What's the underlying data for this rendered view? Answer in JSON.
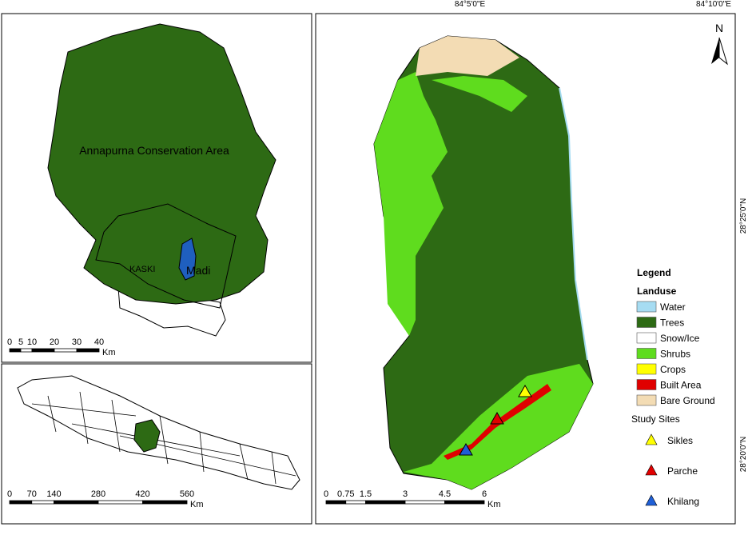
{
  "inset_top": {
    "labels": {
      "area": "Annapurna Conservation Area",
      "district": "KASKI",
      "watershed": "Madi"
    },
    "scale": {
      "ticks": [
        0,
        5,
        10,
        20,
        30,
        40
      ],
      "unit": "Km"
    }
  },
  "inset_bottom": {
    "scale": {
      "ticks": [
        0,
        70,
        140,
        280,
        420,
        560
      ],
      "unit": "Km"
    }
  },
  "main_map": {
    "graticule": {
      "x": [
        "84°5'0\"E",
        "84°10'0\"E"
      ],
      "y": [
        "28°25'0\"N",
        "28°20'0\"N"
      ]
    },
    "north": "N",
    "scale": {
      "ticks": [
        0,
        0.75,
        1.5,
        3,
        4.5,
        6
      ],
      "unit": "Km"
    }
  },
  "legend": {
    "title": "Legend",
    "landuse_title": "Landuse",
    "landuse": [
      {
        "label": "Water",
        "color": "#a6dcf2"
      },
      {
        "label": "Trees",
        "color": "#2d6a14"
      },
      {
        "label": "Snow/Ice",
        "color": "#ffffff"
      },
      {
        "label": "Shrubs",
        "color": "#5fdc1e"
      },
      {
        "label": "Crops",
        "color": "#ffff00"
      },
      {
        "label": "Built Area",
        "color": "#e00000"
      },
      {
        "label": "Bare Ground",
        "color": "#f3dcb4"
      }
    ],
    "sites_title": "Study Sites",
    "sites": [
      {
        "label": "Sikles",
        "color": "#ffff00"
      },
      {
        "label": "Parche",
        "color": "#e00000"
      },
      {
        "label": "Khilang",
        "color": "#1f5fd6"
      }
    ]
  }
}
